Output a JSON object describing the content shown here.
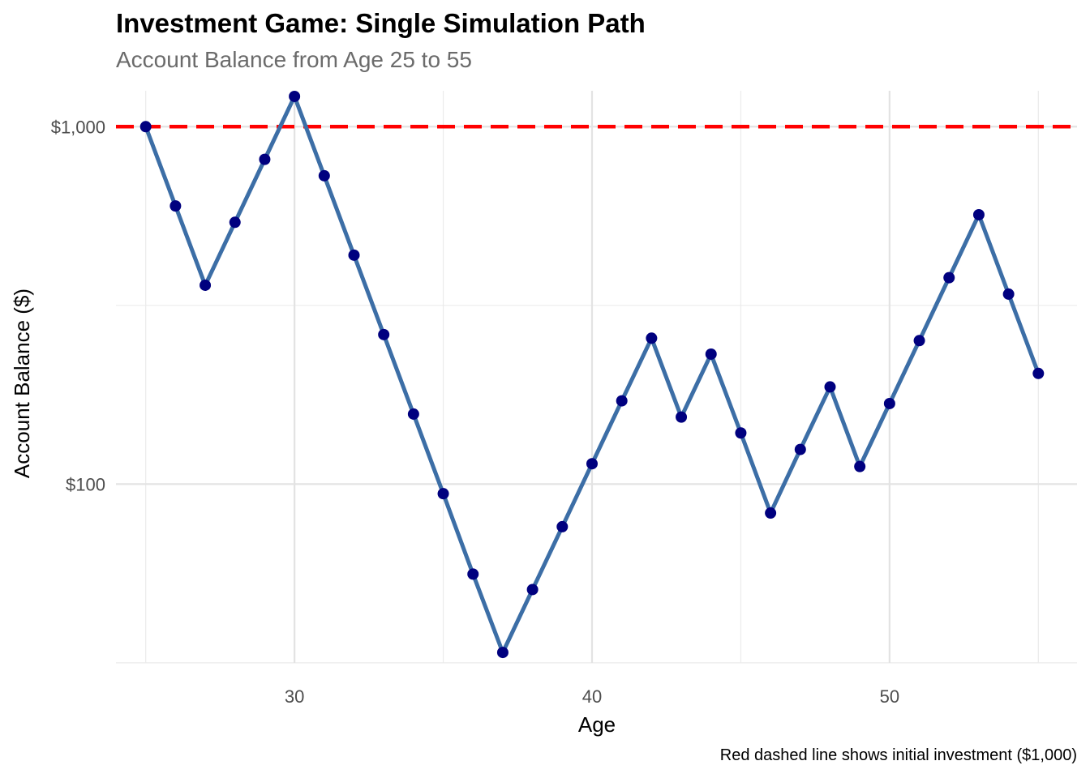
{
  "chart_data": {
    "type": "line",
    "title": "Investment Game: Single Simulation Path",
    "subtitle": "Account Balance from Age 25 to 55",
    "caption": "Red dashed line shows initial investment ($1,000)",
    "xlabel": "Age",
    "ylabel": "Account Balance ($)",
    "xlim": [
      24,
      56.3
    ],
    "ylim": [
      31.6,
      1260
    ],
    "y_scale": "log",
    "x_ticks": [
      30,
      40,
      50
    ],
    "x_tick_labels": [
      "30",
      "40",
      "50"
    ],
    "y_ticks": [
      100,
      1000
    ],
    "y_tick_labels": [
      "$100",
      "$1,000"
    ],
    "grid": true,
    "reference_line": {
      "y": 1000,
      "style": "dashed",
      "color": "#ff0000"
    },
    "series": [
      {
        "line_color": "#3c6ea6",
        "point_color": "#00007f",
        "x": [
          25,
          26,
          27,
          28,
          29,
          30,
          31,
          32,
          33,
          34,
          35,
          36,
          37,
          38,
          39,
          40,
          41,
          42,
          43,
          44,
          45,
          46,
          47,
          48,
          49,
          50,
          51,
          52,
          53,
          54,
          55
        ],
        "y": [
          1000,
          600,
          360,
          540,
          810,
          1215,
          729,
          437,
          262,
          157,
          94,
          56,
          33.8,
          50.7,
          76,
          114,
          171,
          256,
          154,
          231,
          139,
          83,
          125,
          187,
          112,
          168,
          252,
          378,
          567,
          340,
          204
        ]
      }
    ]
  }
}
